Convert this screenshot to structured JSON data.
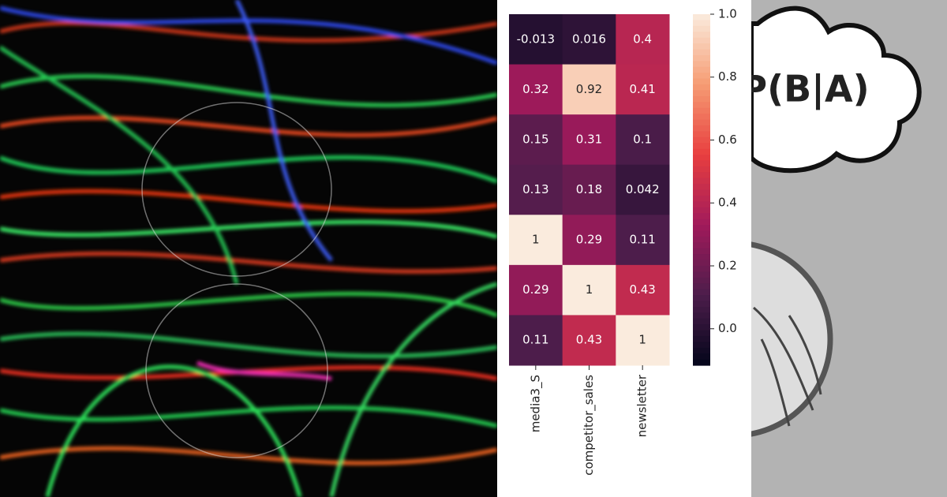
{
  "chart_data": {
    "type": "heatmap",
    "x_categories": [
      "media3_S",
      "competitor_sales",
      "newsletter"
    ],
    "values": [
      [
        -0.013,
        0.016,
        0.4
      ],
      [
        0.32,
        0.92,
        0.41
      ],
      [
        0.15,
        0.31,
        0.1
      ],
      [
        0.13,
        0.18,
        0.042
      ],
      [
        1,
        0.29,
        0.11
      ],
      [
        0.29,
        1,
        0.43
      ],
      [
        0.11,
        0.43,
        1
      ]
    ],
    "colormap": "rocket",
    "clim": [
      -0.116,
      1
    ],
    "cticks": [
      {
        "value": 0,
        "label": "0.0"
      },
      0.2,
      0.4,
      0.6,
      0.8,
      {
        "value": 1,
        "label": "1.0"
      }
    ]
  },
  "overlay_text": "P(B|A)"
}
